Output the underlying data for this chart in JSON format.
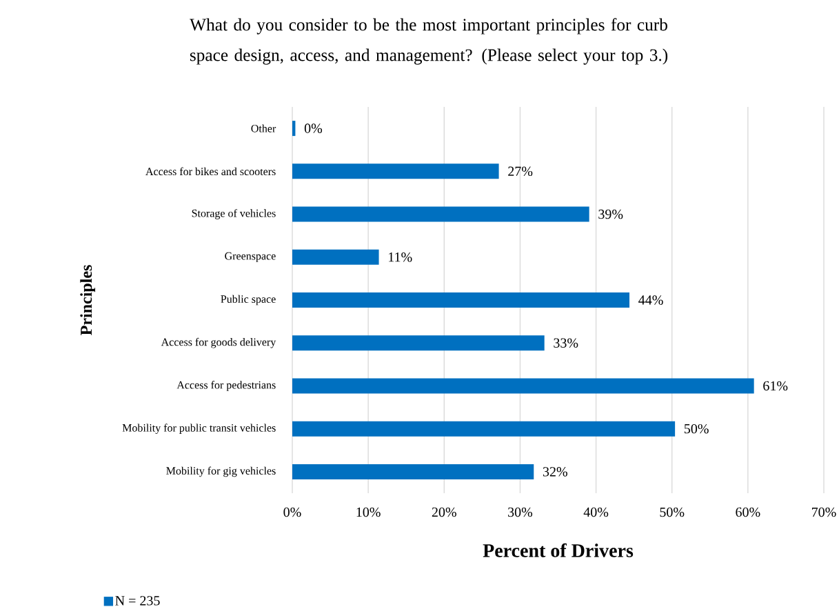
{
  "chart_data": {
    "type": "bar",
    "orientation": "horizontal",
    "title": "What do you consider to be the most important principles for curb space design, access, and management? (Please select your top 3.)",
    "xlabel": "Percent of Drivers",
    "ylabel": "Principles",
    "categories": [
      "Other",
      "Access for bikes and scooters",
      "Storage of vehicles",
      "Greenspace",
      "Public space",
      "Access for goods delivery",
      "Access for pedestrians",
      "Mobility for public transit vehicles",
      "Mobility for gig vehicles"
    ],
    "series": [
      {
        "name": "N = 235",
        "color": "#0070c0",
        "values": [
          0.4,
          27.2,
          39.1,
          11.4,
          44.4,
          33.2,
          60.8,
          50.4,
          31.8
        ],
        "value_labels": [
          "0%",
          "27%",
          "39%",
          "11%",
          "44%",
          "33%",
          "61%",
          "50%",
          "32%"
        ]
      }
    ],
    "xlim": [
      0,
      70
    ],
    "xticks": [
      {
        "value": 0,
        "label": "0%"
      },
      {
        "value": 10,
        "label": "10%"
      },
      {
        "value": 20,
        "label": "20%"
      },
      {
        "value": 30,
        "label": "30%"
      },
      {
        "value": 40,
        "label": "40%"
      },
      {
        "value": 50,
        "label": "50%"
      },
      {
        "value": 60,
        "label": "60%"
      },
      {
        "value": 70,
        "label": "70%"
      }
    ],
    "grid": "x",
    "legend": "bottom left"
  }
}
